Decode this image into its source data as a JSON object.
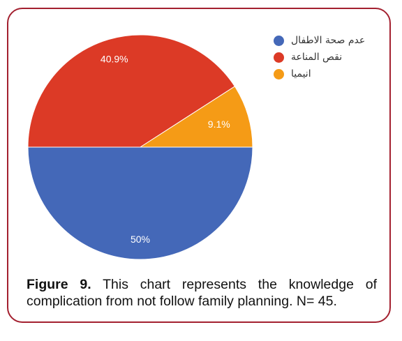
{
  "chart_data": {
    "type": "pie",
    "title": "",
    "slices": [
      {
        "label": "عدم صحة الاطفال",
        "value": 50,
        "display": "50%",
        "color": "#4468b8"
      },
      {
        "label": "نقص المناعة",
        "value": 40.9,
        "display": "40.9%",
        "color": "#dc3a26"
      },
      {
        "label": "انيميا",
        "value": 9.1,
        "display": "9.1%",
        "color": "#f59b16"
      }
    ],
    "legend": "right"
  },
  "caption": {
    "figure_label": "Figure 9.",
    "text": "This chart represents the knowledge of complication from not follow family planning. N= 45."
  }
}
